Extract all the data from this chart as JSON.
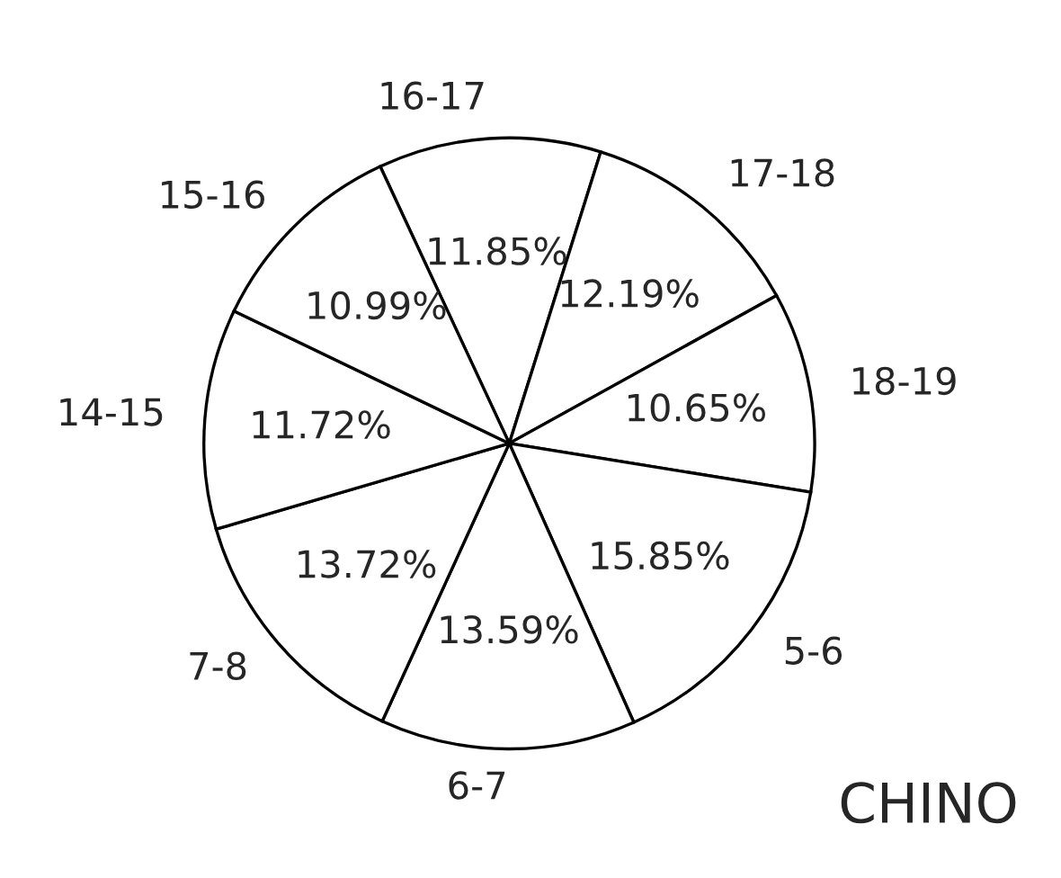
{
  "chart_data": {
    "type": "pie",
    "categories": [
      "16-17",
      "17-18",
      "18-19",
      "5-6",
      "6-7",
      "7-8",
      "14-15",
      "15-16"
    ],
    "values": [
      11.85,
      12.19,
      10.65,
      15.85,
      13.59,
      13.72,
      11.72,
      10.99
    ],
    "value_labels": [
      "11.85%",
      "12.19%",
      "10.65%",
      "15.85%",
      "13.59%",
      "13.72%",
      "11.72%",
      "10.99%"
    ],
    "colors": [
      "#ffffff",
      "#ffffff",
      "#ffffff",
      "#ffffff",
      "#ffffff",
      "#ffffff",
      "#ffffff",
      "#ffffff"
    ],
    "annotations": [
      "CHINO"
    ]
  }
}
